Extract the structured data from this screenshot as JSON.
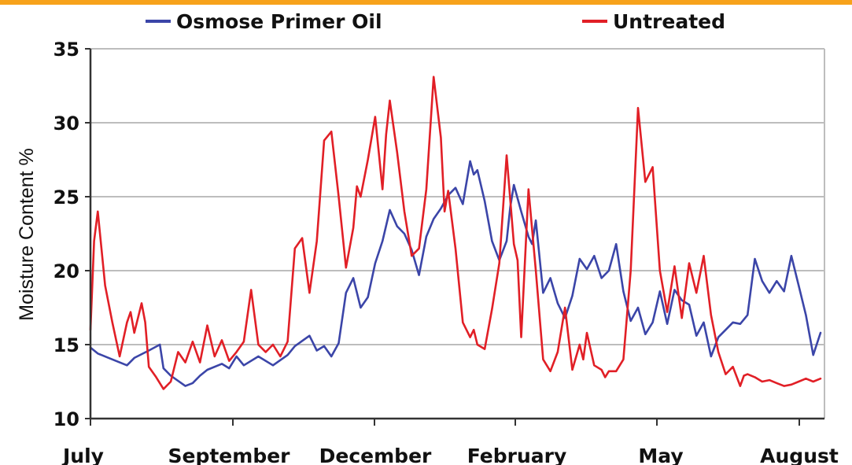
{
  "colors": {
    "top_bar": "#f7a21b",
    "grid": "#bdbdbd",
    "axis": "#333333"
  },
  "chart_data": {
    "type": "line",
    "ylabel": "Moisture Content %",
    "xlabel": "",
    "ylim": [
      10,
      35
    ],
    "yticks": [
      10,
      15,
      20,
      25,
      30,
      35
    ],
    "grid": true,
    "legend_position": "top",
    "x_tick_labels": [
      "July",
      "September",
      "December",
      "February",
      "May",
      "August"
    ],
    "x_domain": [
      "July",
      "August"
    ],
    "series": [
      {
        "name": "Osmose Primer Oil",
        "color": "#3b45a8",
        "x": [
          0,
          0.01,
          0.03,
          0.05,
          0.06,
          0.08,
          0.095,
          0.1,
          0.11,
          0.13,
          0.14,
          0.15,
          0.16,
          0.18,
          0.19,
          0.2,
          0.21,
          0.23,
          0.25,
          0.27,
          0.28,
          0.3,
          0.31,
          0.32,
          0.33,
          0.34,
          0.35,
          0.36,
          0.37,
          0.38,
          0.39,
          0.4,
          0.41,
          0.42,
          0.43,
          0.44,
          0.45,
          0.46,
          0.47,
          0.48,
          0.49,
          0.5,
          0.51,
          0.52,
          0.525,
          0.53,
          0.54,
          0.55,
          0.56,
          0.57,
          0.575,
          0.58,
          0.59,
          0.6,
          0.605,
          0.61,
          0.62,
          0.63,
          0.64,
          0.65,
          0.66,
          0.67,
          0.68,
          0.69,
          0.7,
          0.71,
          0.72,
          0.73,
          0.74,
          0.75,
          0.76,
          0.77,
          0.78,
          0.79,
          0.8,
          0.81,
          0.82,
          0.83,
          0.84,
          0.85,
          0.86,
          0.87,
          0.88,
          0.89,
          0.9,
          0.91,
          0.92,
          0.93,
          0.94,
          0.95,
          0.96,
          0.97,
          0.98,
          0.99,
          1.0
        ],
        "y": [
          14.8,
          14.4,
          14.0,
          13.6,
          14.1,
          14.6,
          15.0,
          13.4,
          12.9,
          12.2,
          12.4,
          12.9,
          13.3,
          13.7,
          13.4,
          14.2,
          13.6,
          14.2,
          13.6,
          14.3,
          14.9,
          15.6,
          14.6,
          14.9,
          14.2,
          15.1,
          18.5,
          19.5,
          17.5,
          18.2,
          20.5,
          22.0,
          24.1,
          23.0,
          22.5,
          21.4,
          19.7,
          22.3,
          23.5,
          24.2,
          25.1,
          25.6,
          24.5,
          27.4,
          26.5,
          26.8,
          24.7,
          22.0,
          20.7,
          22.0,
          24.3,
          25.8,
          24.0,
          22.3,
          21.8,
          23.4,
          18.5,
          19.5,
          17.8,
          16.8,
          18.3,
          20.8,
          20.1,
          21.0,
          19.5,
          20.0,
          21.8,
          18.6,
          16.6,
          17.5,
          15.7,
          16.5,
          18.6,
          16.4,
          18.7,
          18.0,
          17.7,
          15.6,
          16.5,
          14.2,
          15.5,
          16.0,
          16.5,
          16.4,
          17.0,
          20.8,
          19.3,
          18.5,
          19.3,
          18.6,
          21.0,
          19.0,
          17.0,
          14.3,
          15.8
        ]
      },
      {
        "name": "Untreated",
        "color": "#e11f26",
        "x": [
          0,
          0.005,
          0.01,
          0.02,
          0.03,
          0.04,
          0.05,
          0.055,
          0.06,
          0.07,
          0.075,
          0.08,
          0.09,
          0.1,
          0.11,
          0.12,
          0.13,
          0.14,
          0.15,
          0.16,
          0.17,
          0.18,
          0.19,
          0.2,
          0.21,
          0.22,
          0.23,
          0.24,
          0.25,
          0.26,
          0.27,
          0.28,
          0.29,
          0.3,
          0.31,
          0.32,
          0.33,
          0.34,
          0.35,
          0.36,
          0.365,
          0.37,
          0.38,
          0.39,
          0.4,
          0.405,
          0.41,
          0.42,
          0.43,
          0.44,
          0.45,
          0.46,
          0.47,
          0.48,
          0.485,
          0.49,
          0.5,
          0.51,
          0.52,
          0.525,
          0.53,
          0.54,
          0.55,
          0.56,
          0.57,
          0.58,
          0.585,
          0.59,
          0.6,
          0.61,
          0.62,
          0.63,
          0.64,
          0.65,
          0.66,
          0.67,
          0.675,
          0.68,
          0.69,
          0.7,
          0.705,
          0.71,
          0.72,
          0.73,
          0.74,
          0.75,
          0.76,
          0.77,
          0.78,
          0.79,
          0.8,
          0.81,
          0.82,
          0.83,
          0.84,
          0.85,
          0.86,
          0.87,
          0.88,
          0.89,
          0.895,
          0.9,
          0.91,
          0.92,
          0.93,
          0.94,
          0.95,
          0.96,
          0.97,
          0.98,
          0.99,
          1.0
        ],
        "y": [
          16.0,
          22.0,
          24.0,
          19.0,
          16.5,
          14.2,
          16.5,
          17.2,
          15.8,
          17.8,
          16.5,
          13.5,
          12.8,
          12.0,
          12.5,
          14.5,
          13.8,
          15.2,
          13.8,
          16.3,
          14.2,
          15.3,
          13.9,
          14.5,
          15.2,
          18.7,
          15.0,
          14.5,
          15.0,
          14.2,
          15.2,
          21.5,
          22.2,
          18.5,
          22.0,
          28.8,
          29.4,
          25.0,
          20.2,
          22.9,
          25.7,
          25.0,
          27.5,
          30.4,
          25.5,
          29.2,
          31.5,
          28.0,
          24.0,
          21.0,
          21.5,
          25.5,
          33.1,
          29.0,
          24.0,
          25.4,
          21.5,
          16.5,
          15.5,
          16.0,
          15.0,
          14.7,
          17.4,
          20.5,
          27.8,
          21.8,
          20.7,
          15.5,
          25.5,
          20.0,
          14.0,
          13.2,
          14.5,
          17.5,
          13.3,
          15.0,
          14.0,
          15.8,
          13.6,
          13.3,
          12.8,
          13.2,
          13.2,
          14.0,
          20.0,
          31.0,
          26.0,
          27.0,
          20.0,
          17.2,
          20.3,
          16.8,
          20.5,
          18.5,
          21.0,
          17.0,
          14.5,
          13.0,
          13.5,
          12.2,
          12.9,
          13.0,
          12.8,
          12.5,
          12.6,
          12.4,
          12.2,
          12.3,
          12.5,
          12.7,
          12.5,
          12.7
        ]
      }
    ]
  }
}
